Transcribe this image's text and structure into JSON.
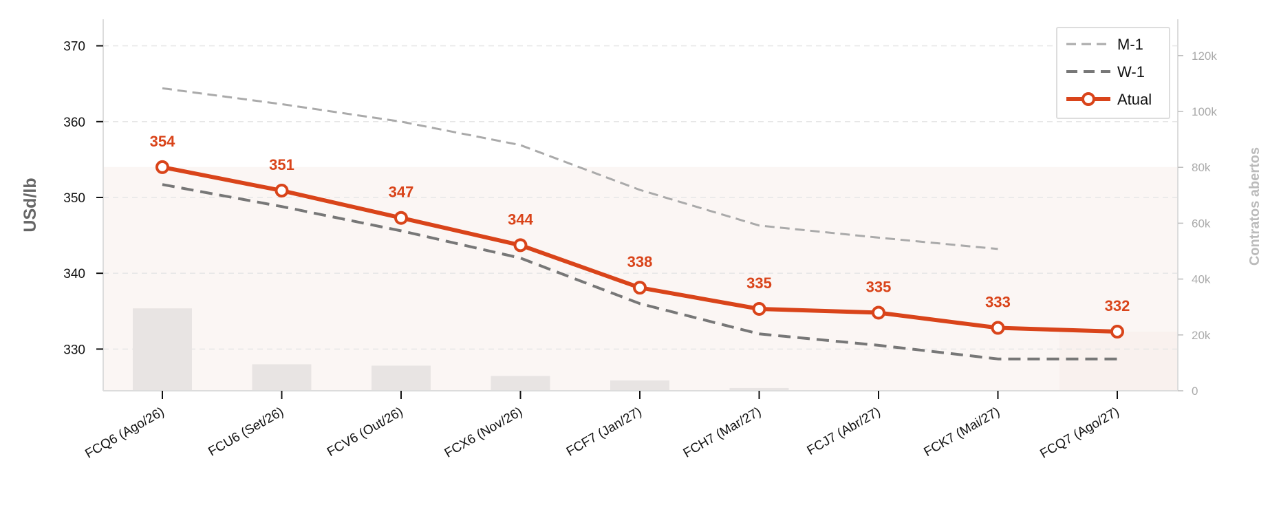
{
  "chart_data": {
    "type": "line",
    "categories": [
      "FCQ6 (Ago/26)",
      "FCU6 (Set/26)",
      "FCV6 (Out/26)",
      "FCX6 (Nov/26)",
      "FCF7 (Jan/27)",
      "FCH7 (Mar/27)",
      "FCJ7 (Abr/27)",
      "FCK7 (Mai/27)",
      "FCQ7 (Ago/27)"
    ],
    "series": [
      {
        "name": "M-1",
        "values": [
          364.4,
          362.3,
          360.0,
          356.9,
          351.0,
          346.3,
          344.7,
          343.2,
          null
        ],
        "color": "#aaaaaa",
        "style": "dashed-thin"
      },
      {
        "name": "W-1",
        "values": [
          351.7,
          348.8,
          345.6,
          342.0,
          336.0,
          332.0,
          330.5,
          328.7,
          328.7
        ],
        "color": "#777777",
        "style": "dashed-thick"
      },
      {
        "name": "Atual",
        "values": [
          354.0,
          350.9,
          347.3,
          343.7,
          338.1,
          335.3,
          334.8,
          332.8,
          332.3
        ],
        "color": "#d9441a",
        "style": "solid-markers"
      }
    ],
    "data_labels": [
      "354",
      "351",
      "347",
      "344",
      "338",
      "335",
      "335",
      "333",
      "332"
    ],
    "bars": {
      "axis": "right",
      "values": [
        29500,
        9500,
        9000,
        5300,
        3700,
        1000,
        0,
        0,
        0
      ],
      "color": "#e8e4e3"
    },
    "band_fill": "#fbf6f4",
    "ylabel": "USd/lb",
    "ylabel_right": "Contratos abertos",
    "ylim": [
      324.5,
      373.5
    ],
    "yticks": [
      330,
      340,
      350,
      360,
      370
    ],
    "ylim_right": [
      0,
      133000
    ],
    "yticks_right": [
      {
        "value": 0,
        "label": "0"
      },
      {
        "value": 20000,
        "label": "20k"
      },
      {
        "value": 40000,
        "label": "40k"
      },
      {
        "value": 60000,
        "label": "60k"
      },
      {
        "value": 80000,
        "label": "80k"
      },
      {
        "value": 100000,
        "label": "100k"
      },
      {
        "value": 120000,
        "label": "120k"
      }
    ],
    "grid": true,
    "legend_position": "top-right",
    "legend_entries": [
      "M-1",
      "W-1",
      "Atual"
    ]
  }
}
